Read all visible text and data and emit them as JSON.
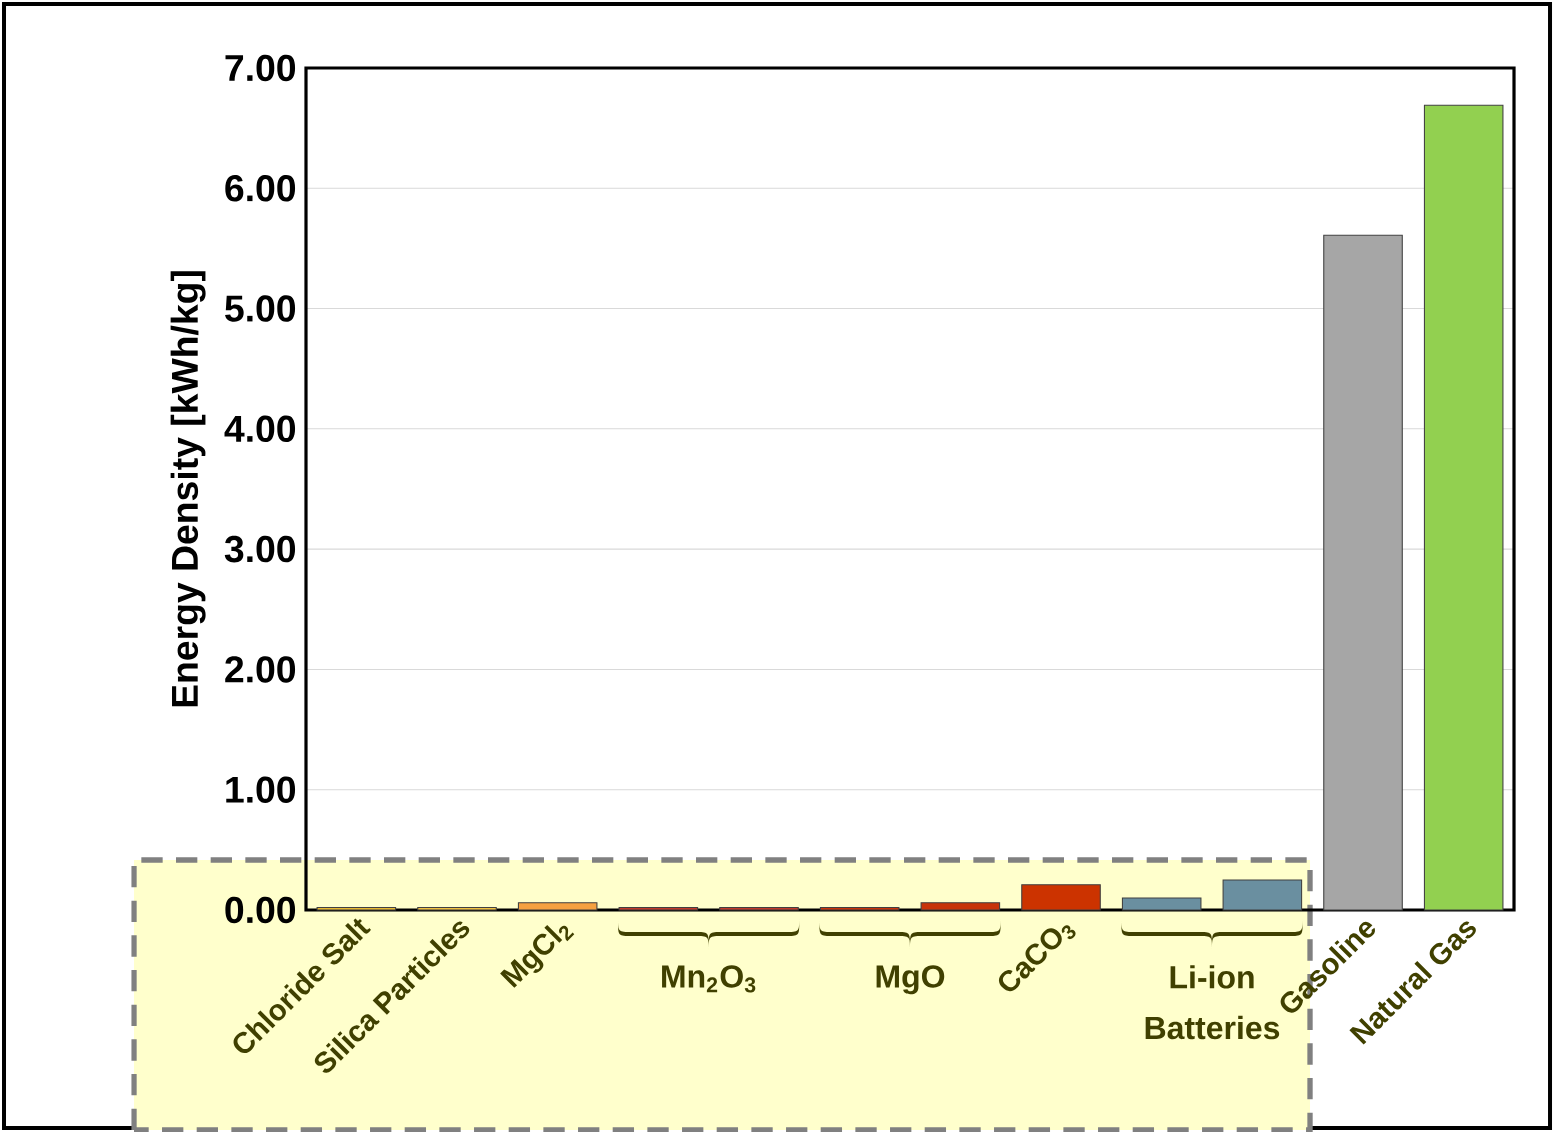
{
  "chart_data": {
    "type": "bar",
    "ylabel": "Energy Density [kWh/kg]",
    "categories": [
      "Chloride Salt",
      "Silica Particles",
      "MgCl$_{2}$",
      null,
      null,
      null,
      null,
      "CaCO$_{3}$",
      null,
      null,
      "Gasoline",
      "Natural Gas"
    ],
    "values": [
      0.02,
      0.02,
      0.06,
      0.02,
      0.02,
      0.02,
      0.06,
      0.21,
      0.1,
      0.25,
      5.61,
      6.69
    ],
    "colors": [
      "#e8b830",
      "#f0c040",
      "#f5a040",
      "#c0392b",
      "#c0392b",
      "#c8340a",
      "#c8340a",
      "#cc3300",
      "#6a8fa0",
      "#6a8fa0",
      "#a6a6a6",
      "#92d050"
    ],
    "ylim": [
      0,
      7
    ],
    "yticks": [
      {
        "value": 0,
        "label": "0.00"
      },
      {
        "value": 1,
        "label": "1.00"
      },
      {
        "value": 2,
        "label": "2.00"
      },
      {
        "value": 3,
        "label": "3.00"
      },
      {
        "value": 4,
        "label": "4.00"
      },
      {
        "value": 5,
        "label": "5.00"
      },
      {
        "value": 6,
        "label": "6.00"
      },
      {
        "value": 7,
        "label": "7.00"
      }
    ],
    "grid": "y",
    "annotations": [
      "Mn$_{2}$O$_{3}$",
      "MgO",
      "Li-ion Batteries"
    ]
  }
}
